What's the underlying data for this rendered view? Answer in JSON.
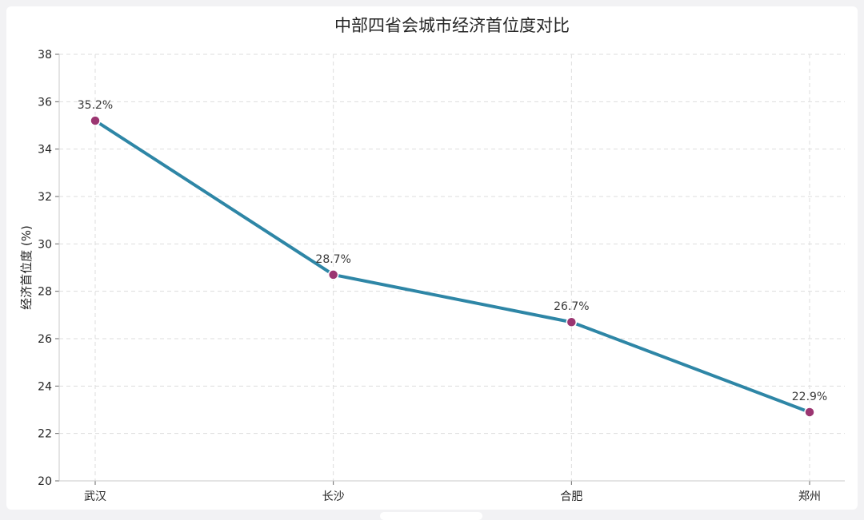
{
  "chart_data": {
    "type": "line",
    "title": "中部四省会城市经济首位度对比",
    "xlabel": "",
    "ylabel": "经济首位度 (%)",
    "categories": [
      "武汉",
      "长沙",
      "合肥",
      "郑州"
    ],
    "series": [
      {
        "values": [
          35.2,
          28.7,
          26.7,
          22.9
        ]
      }
    ],
    "data_labels": [
      "35.2%",
      "28.7%",
      "26.7%",
      "22.9%"
    ],
    "ylim": [
      20,
      38
    ],
    "yticks": [
      20,
      22,
      24,
      26,
      28,
      30,
      32,
      34,
      36,
      38
    ],
    "ytick_labels": [
      "20",
      "22",
      "24",
      "26",
      "28",
      "30",
      "32",
      "34",
      "36",
      "38"
    ],
    "grid": true,
    "colors": {
      "line": "#2e86a6",
      "marker": "#9b3571",
      "marker_edge": "#ffffff"
    }
  }
}
